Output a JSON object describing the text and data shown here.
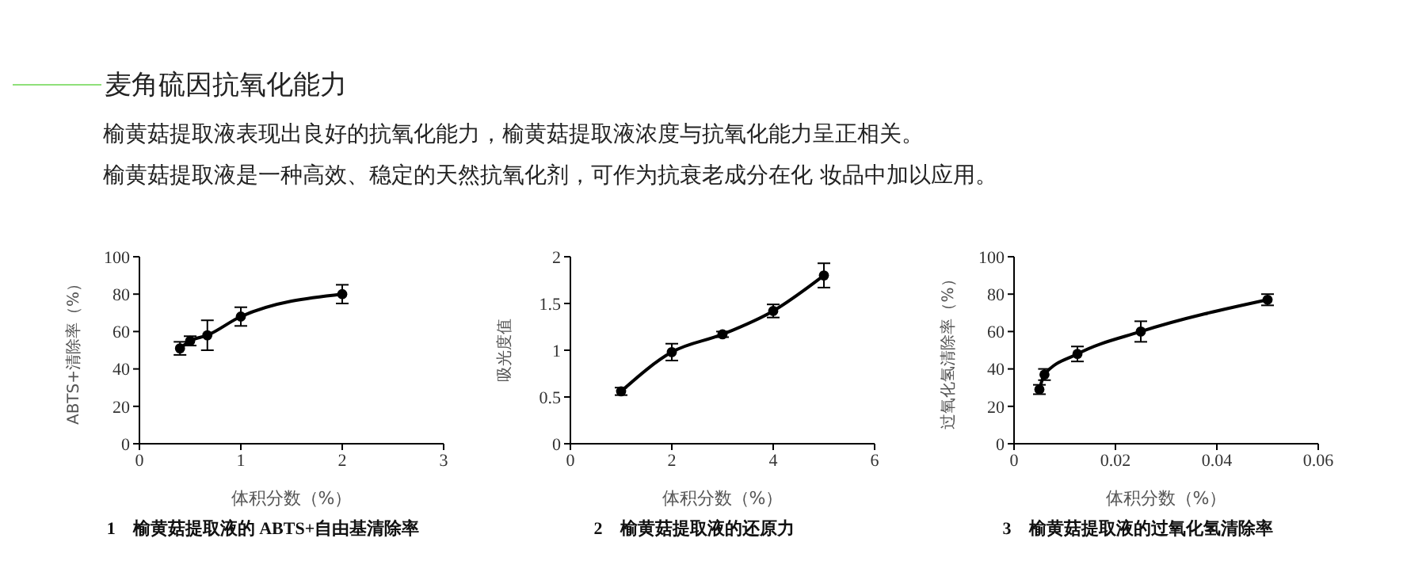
{
  "chart_data": [
    {
      "type": "other",
      "title": "麦角硫因抗氧化能力",
      "annotations": [
        "榆黄菇提取液表现出良好的抗氧化能力，榆黄菇提取液浓度与抗氧化能力呈正相关。",
        "榆黄菇提取液是一种高效、稳定的天然抗氧化剂，可作为抗衰老成分在化 妆品中加以应用。"
      ]
    },
    {
      "type": "line",
      "title": "1　榆黄菇提取液的 ABTS+自由基清除率",
      "xlabel": "体积分数（%）",
      "ylabel": "ABTS+清除率（%）",
      "x": [
        0.4,
        0.5,
        0.67,
        1,
        2
      ],
      "xlim": [
        0,
        3
      ],
      "xticks": [
        0,
        1,
        2,
        3
      ],
      "ylim": [
        0,
        100
      ],
      "yticks": [
        0,
        20,
        40,
        60,
        80,
        100
      ],
      "grid": false,
      "marker": "circle",
      "line_style": "solid",
      "series": [
        {
          "color": "#000000",
          "values": [
            51,
            55,
            58,
            68,
            80
          ],
          "errors": [
            3.5,
            2.5,
            8,
            5,
            5
          ]
        }
      ]
    },
    {
      "type": "line",
      "title": "2　榆黄菇提取液的还原力",
      "xlabel": "体积分数（%）",
      "ylabel": "吸光度值",
      "x": [
        1,
        2,
        3,
        4,
        5
      ],
      "xlim": [
        0,
        6
      ],
      "xticks": [
        0,
        2,
        4,
        6
      ],
      "ylim": [
        0,
        2
      ],
      "yticks": [
        0,
        0.5,
        1,
        1.5,
        2
      ],
      "grid": false,
      "marker": "circle",
      "line_style": "solid",
      "series": [
        {
          "color": "#000000",
          "values": [
            0.56,
            0.98,
            1.17,
            1.42,
            1.8
          ],
          "errors": [
            0.04,
            0.09,
            0.03,
            0.07,
            0.13
          ]
        }
      ]
    },
    {
      "type": "line",
      "title": "3　榆黄菇提取液的过氧化氢清除率",
      "xlabel": "体积分数（%）",
      "ylabel": "过氧化氢清除率（%）",
      "x": [
        0.005,
        0.006,
        0.0125,
        0.025,
        0.05
      ],
      "xlim": [
        0,
        0.06
      ],
      "xticks": [
        0,
        0.02,
        0.04,
        0.06
      ],
      "ylim": [
        0,
        100
      ],
      "yticks": [
        0,
        20,
        40,
        60,
        80,
        100
      ],
      "grid": false,
      "marker": "circle",
      "line_style": "solid",
      "series": [
        {
          "color": "#000000",
          "values": [
            29,
            37,
            48,
            60,
            77
          ],
          "errors": [
            2.5,
            3,
            4,
            5.5,
            3
          ]
        }
      ]
    }
  ]
}
